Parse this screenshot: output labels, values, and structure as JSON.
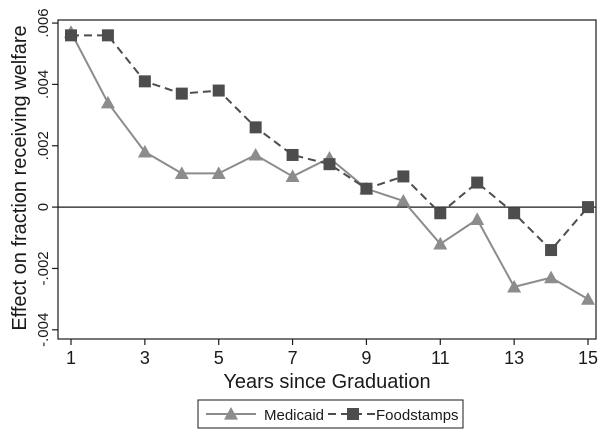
{
  "chart_data": {
    "type": "line",
    "title": "",
    "xlabel": "Years since Graduation",
    "ylabel": "Effect on fraction receiving welfare",
    "x": [
      1,
      2,
      3,
      4,
      5,
      6,
      7,
      8,
      9,
      10,
      11,
      12,
      13,
      14,
      15
    ],
    "xticks": [
      1,
      3,
      5,
      7,
      9,
      11,
      13,
      15
    ],
    "xlim": [
      1,
      15
    ],
    "yticks": [
      -0.004,
      -0.002,
      0,
      0.002,
      0.004,
      0.006
    ],
    "ytick_labels": [
      "-.004",
      "-.002",
      "0",
      ".002",
      ".004",
      ".006"
    ],
    "ylim": [
      -0.0043,
      0.0061
    ],
    "reference_line": 0,
    "grid": false,
    "legend_position": "bottom",
    "series": [
      {
        "name": "Medicaid",
        "color": "#8c8c8c",
        "line_style": "solid",
        "marker": "triangle",
        "values": [
          0.0057,
          0.0034,
          0.0018,
          0.0011,
          0.0011,
          0.0017,
          0.001,
          0.0016,
          0.0006,
          0.0002,
          -0.0012,
          -0.0004,
          -0.0026,
          -0.0023,
          -0.003
        ]
      },
      {
        "name": "Foodstamps",
        "color": "#4d4d4d",
        "line_style": "dashed",
        "marker": "square",
        "values": [
          0.0056,
          0.0056,
          0.0041,
          0.0037,
          0.0038,
          0.0026,
          0.0017,
          0.0014,
          0.0006,
          0.001,
          -0.0002,
          0.0008,
          -0.0002,
          -0.0014,
          0.0
        ]
      }
    ]
  }
}
